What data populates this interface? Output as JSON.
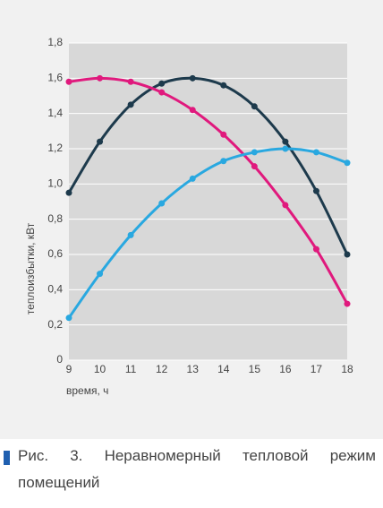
{
  "chart_data": {
    "type": "line",
    "caption": "Рис. 3. Неравномерный тепловой режим помещений",
    "y_label": "теплоизбытки, кВт",
    "x_label": "время, ч",
    "x": [
      9,
      10,
      11,
      12,
      13,
      14,
      15,
      16,
      17,
      18
    ],
    "xlim": [
      9,
      18
    ],
    "xticks": [
      9,
      10,
      11,
      12,
      13,
      14,
      15,
      16,
      17,
      18
    ],
    "ylim": [
      0,
      1.8
    ],
    "yticks": [
      0,
      {
        "value": 0.2,
        "label": "0,2"
      },
      {
        "value": 0.4,
        "label": "0,4"
      },
      {
        "value": 0.6,
        "label": "0,6"
      },
      {
        "value": 0.8,
        "label": "0,8"
      },
      {
        "value": 1.0,
        "label": "1,0"
      },
      {
        "value": 1.2,
        "label": "1,2"
      },
      {
        "value": 1.4,
        "label": "1,4"
      },
      {
        "value": 1.6,
        "label": "1,6"
      },
      {
        "value": 1.8,
        "label": "1,8"
      }
    ],
    "grid": true,
    "series": [
      {
        "color": "#1d3a4c",
        "values": [
          0.95,
          1.24,
          1.45,
          1.57,
          1.6,
          1.56,
          1.44,
          1.24,
          0.96,
          0.6
        ]
      },
      {
        "color": "#e0197d",
        "values": [
          1.58,
          1.6,
          1.58,
          1.52,
          1.42,
          1.28,
          1.1,
          0.88,
          0.63,
          0.32
        ]
      },
      {
        "color": "#29a8e0",
        "values": [
          0.24,
          0.49,
          0.71,
          0.89,
          1.03,
          1.13,
          1.18,
          1.2,
          1.18,
          1.12
        ]
      }
    ]
  }
}
